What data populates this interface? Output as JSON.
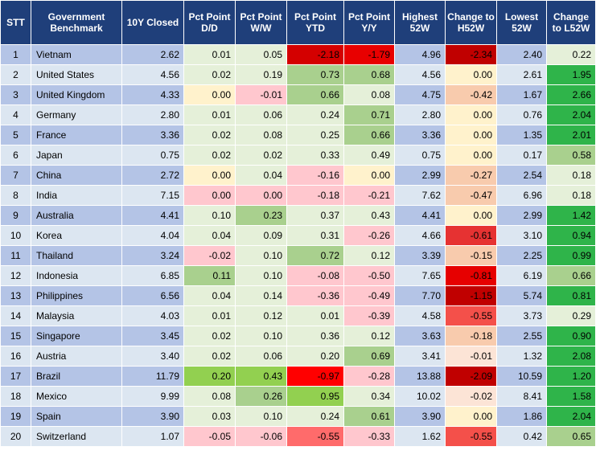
{
  "chart_data": {
    "type": "table",
    "columns": [
      "STT",
      "Government Benchmark",
      "10Y Closed",
      "Pct Point D/D",
      "Pct Point W/W",
      "Pct Point YTD",
      "Pct Point Y/Y",
      "Highest 52W",
      "Change to H52W",
      "Lowest 52W",
      "Change to L52W"
    ],
    "rows": [
      [
        "1",
        "Vietnam",
        "2.62",
        "0.01",
        "0.05",
        "-2.18",
        "-1.79",
        "4.96",
        "-2.34",
        "2.40",
        "0.22"
      ],
      [
        "2",
        "United States",
        "4.56",
        "0.02",
        "0.19",
        "0.73",
        "0.68",
        "4.56",
        "0.00",
        "2.61",
        "1.95"
      ],
      [
        "3",
        "United Kingdom",
        "4.33",
        "0.00",
        "-0.01",
        "0.66",
        "0.08",
        "4.75",
        "-0.42",
        "1.67",
        "2.66"
      ],
      [
        "4",
        "Germany",
        "2.80",
        "0.01",
        "0.06",
        "0.24",
        "0.71",
        "2.80",
        "0.00",
        "0.76",
        "2.04"
      ],
      [
        "5",
        "France",
        "3.36",
        "0.02",
        "0.08",
        "0.25",
        "0.66",
        "3.36",
        "0.00",
        "1.35",
        "2.01"
      ],
      [
        "6",
        "Japan",
        "0.75",
        "0.02",
        "0.02",
        "0.33",
        "0.49",
        "0.75",
        "0.00",
        "0.17",
        "0.58"
      ],
      [
        "7",
        "China",
        "2.72",
        "0.00",
        "0.04",
        "-0.16",
        "0.00",
        "2.99",
        "-0.27",
        "2.54",
        "0.18"
      ],
      [
        "8",
        "India",
        "7.15",
        "0.00",
        "0.00",
        "-0.18",
        "-0.21",
        "7.62",
        "-0.47",
        "6.96",
        "0.18"
      ],
      [
        "9",
        "Australia",
        "4.41",
        "0.10",
        "0.23",
        "0.37",
        "0.43",
        "4.41",
        "0.00",
        "2.99",
        "1.42"
      ],
      [
        "10",
        "Korea",
        "4.04",
        "0.04",
        "0.09",
        "0.31",
        "-0.26",
        "4.66",
        "-0.61",
        "3.10",
        "0.94"
      ],
      [
        "11",
        "Thailand",
        "3.24",
        "-0.02",
        "0.10",
        "0.72",
        "0.12",
        "3.39",
        "-0.15",
        "2.25",
        "0.99"
      ],
      [
        "12",
        "Indonesia",
        "6.85",
        "0.11",
        "0.10",
        "-0.08",
        "-0.50",
        "7.65",
        "-0.81",
        "6.19",
        "0.66"
      ],
      [
        "13",
        "Philippines",
        "6.56",
        "0.04",
        "0.14",
        "-0.36",
        "-0.49",
        "7.70",
        "-1.15",
        "5.74",
        "0.81"
      ],
      [
        "14",
        "Malaysia",
        "4.03",
        "0.01",
        "0.12",
        "0.01",
        "-0.39",
        "4.58",
        "-0.55",
        "3.73",
        "0.29"
      ],
      [
        "15",
        "Singapore",
        "3.45",
        "0.02",
        "0.10",
        "0.36",
        "0.12",
        "3.63",
        "-0.18",
        "2.55",
        "0.90"
      ],
      [
        "16",
        "Austria",
        "3.40",
        "0.02",
        "0.06",
        "0.20",
        "0.69",
        "3.41",
        "-0.01",
        "1.32",
        "2.08"
      ],
      [
        "17",
        "Brazil",
        "11.79",
        "0.20",
        "0.43",
        "-0.97",
        "-0.28",
        "13.88",
        "-2.09",
        "10.59",
        "1.20"
      ],
      [
        "18",
        "Mexico",
        "9.99",
        "0.08",
        "0.26",
        "0.95",
        "0.34",
        "10.02",
        "-0.02",
        "8.41",
        "1.58"
      ],
      [
        "19",
        "Spain",
        "3.90",
        "0.03",
        "0.10",
        "0.24",
        "0.61",
        "3.90",
        "0.00",
        "1.86",
        "2.04"
      ],
      [
        "20",
        "Switzerland",
        "1.07",
        "-0.05",
        "-0.06",
        "-0.55",
        "-0.33",
        "1.62",
        "-0.55",
        "0.42",
        "0.65"
      ]
    ]
  },
  "cell_colors": [
    [
      "#ffffff",
      "#ffffff",
      "#ffffff",
      "#ffffff",
      "#ffffff",
      "#ffffff",
      "#ffffff",
      "#ffffff",
      "#ffffff",
      "#ffffff",
      "#ffffff"
    ],
    [
      "#b4c4e6",
      "#b4c4e6",
      "#b4c4e6",
      "#e5f0d9",
      "#e5f0d9",
      "#d40000",
      "#e80000",
      "#b4c4e6",
      "#c00000",
      "#b4c4e6",
      "#e5f0d9"
    ],
    [
      "#dce6f1",
      "#dce6f1",
      "#dce6f1",
      "#e5f0d9",
      "#e5f0d9",
      "#a9d08e",
      "#a9d08e",
      "#dce6f1",
      "#fff2cc",
      "#dce6f1",
      "#2fb44a"
    ],
    [
      "#b4c4e6",
      "#b4c4e6",
      "#b4c4e6",
      "#fff2cc",
      "#ffc7ce",
      "#a9d08e",
      "#e5f0d9",
      "#b4c4e6",
      "#f8cbad",
      "#b4c4e6",
      "#2fb44a"
    ],
    [
      "#dce6f1",
      "#dce6f1",
      "#dce6f1",
      "#e5f0d9",
      "#e5f0d9",
      "#e5f0d9",
      "#a9d08e",
      "#dce6f1",
      "#fff2cc",
      "#dce6f1",
      "#2fb44a"
    ],
    [
      "#b4c4e6",
      "#b4c4e6",
      "#b4c4e6",
      "#e5f0d9",
      "#e5f0d9",
      "#e5f0d9",
      "#a9d08e",
      "#b4c4e6",
      "#fff2cc",
      "#b4c4e6",
      "#2fb44a"
    ],
    [
      "#dce6f1",
      "#dce6f1",
      "#dce6f1",
      "#e5f0d9",
      "#e5f0d9",
      "#e5f0d9",
      "#e5f0d9",
      "#dce6f1",
      "#fff2cc",
      "#dce6f1",
      "#a9d08e"
    ],
    [
      "#b4c4e6",
      "#b4c4e6",
      "#b4c4e6",
      "#fff2cc",
      "#e5f0d9",
      "#ffc7ce",
      "#fff2cc",
      "#b4c4e6",
      "#f8cbad",
      "#b4c4e6",
      "#e5f0d9"
    ],
    [
      "#dce6f1",
      "#dce6f1",
      "#dce6f1",
      "#ffc7ce",
      "#ffc7ce",
      "#ffc7ce",
      "#ffc7ce",
      "#dce6f1",
      "#f8cbad",
      "#dce6f1",
      "#e5f0d9"
    ],
    [
      "#b4c4e6",
      "#b4c4e6",
      "#b4c4e6",
      "#e5f0d9",
      "#a9d08e",
      "#e5f0d9",
      "#e5f0d9",
      "#b4c4e6",
      "#fff2cc",
      "#b4c4e6",
      "#2fb44a"
    ],
    [
      "#dce6f1",
      "#dce6f1",
      "#dce6f1",
      "#e5f0d9",
      "#e5f0d9",
      "#e5f0d9",
      "#ffc7ce",
      "#dce6f1",
      "#e63232",
      "#dce6f1",
      "#2fb44a"
    ],
    [
      "#b4c4e6",
      "#b4c4e6",
      "#b4c4e6",
      "#ffc7ce",
      "#e5f0d9",
      "#a9d08e",
      "#e5f0d9",
      "#b4c4e6",
      "#f8cbad",
      "#b4c4e6",
      "#2fb44a"
    ],
    [
      "#dce6f1",
      "#dce6f1",
      "#dce6f1",
      "#a9d08e",
      "#e5f0d9",
      "#ffc7ce",
      "#ffc7ce",
      "#dce6f1",
      "#e60000",
      "#dce6f1",
      "#a9d08e"
    ],
    [
      "#b4c4e6",
      "#b4c4e6",
      "#b4c4e6",
      "#e5f0d9",
      "#e5f0d9",
      "#ffc7ce",
      "#ffc7ce",
      "#b4c4e6",
      "#c00000",
      "#b4c4e6",
      "#2fb44a"
    ],
    [
      "#dce6f1",
      "#dce6f1",
      "#dce6f1",
      "#e5f0d9",
      "#e5f0d9",
      "#e5f0d9",
      "#ffc7ce",
      "#dce6f1",
      "#f4504a",
      "#dce6f1",
      "#e5f0d9"
    ],
    [
      "#b4c4e6",
      "#b4c4e6",
      "#b4c4e6",
      "#e5f0d9",
      "#e5f0d9",
      "#e5f0d9",
      "#e5f0d9",
      "#b4c4e6",
      "#f8cbad",
      "#b4c4e6",
      "#2fb44a"
    ],
    [
      "#dce6f1",
      "#dce6f1",
      "#dce6f1",
      "#e5f0d9",
      "#e5f0d9",
      "#e5f0d9",
      "#a9d08e",
      "#dce6f1",
      "#fce4d6",
      "#dce6f1",
      "#2fb44a"
    ],
    [
      "#b4c4e6",
      "#b4c4e6",
      "#b4c4e6",
      "#92d050",
      "#92d050",
      "#ff0000",
      "#ffc7ce",
      "#b4c4e6",
      "#c00000",
      "#b4c4e6",
      "#2fb44a"
    ],
    [
      "#dce6f1",
      "#dce6f1",
      "#dce6f1",
      "#e5f0d9",
      "#a9d08e",
      "#92d050",
      "#e5f0d9",
      "#dce6f1",
      "#fce4d6",
      "#dce6f1",
      "#2fb44a"
    ],
    [
      "#b4c4e6",
      "#b4c4e6",
      "#b4c4e6",
      "#e5f0d9",
      "#e5f0d9",
      "#e5f0d9",
      "#a9d08e",
      "#b4c4e6",
      "#fff2cc",
      "#b4c4e6",
      "#2fb44a"
    ],
    [
      "#dce6f1",
      "#dce6f1",
      "#dce6f1",
      "#ffc7ce",
      "#ffc7ce",
      "#ff6b6b",
      "#ffc7ce",
      "#dce6f1",
      "#f4504a",
      "#dce6f1",
      "#a9d08e"
    ]
  ]
}
